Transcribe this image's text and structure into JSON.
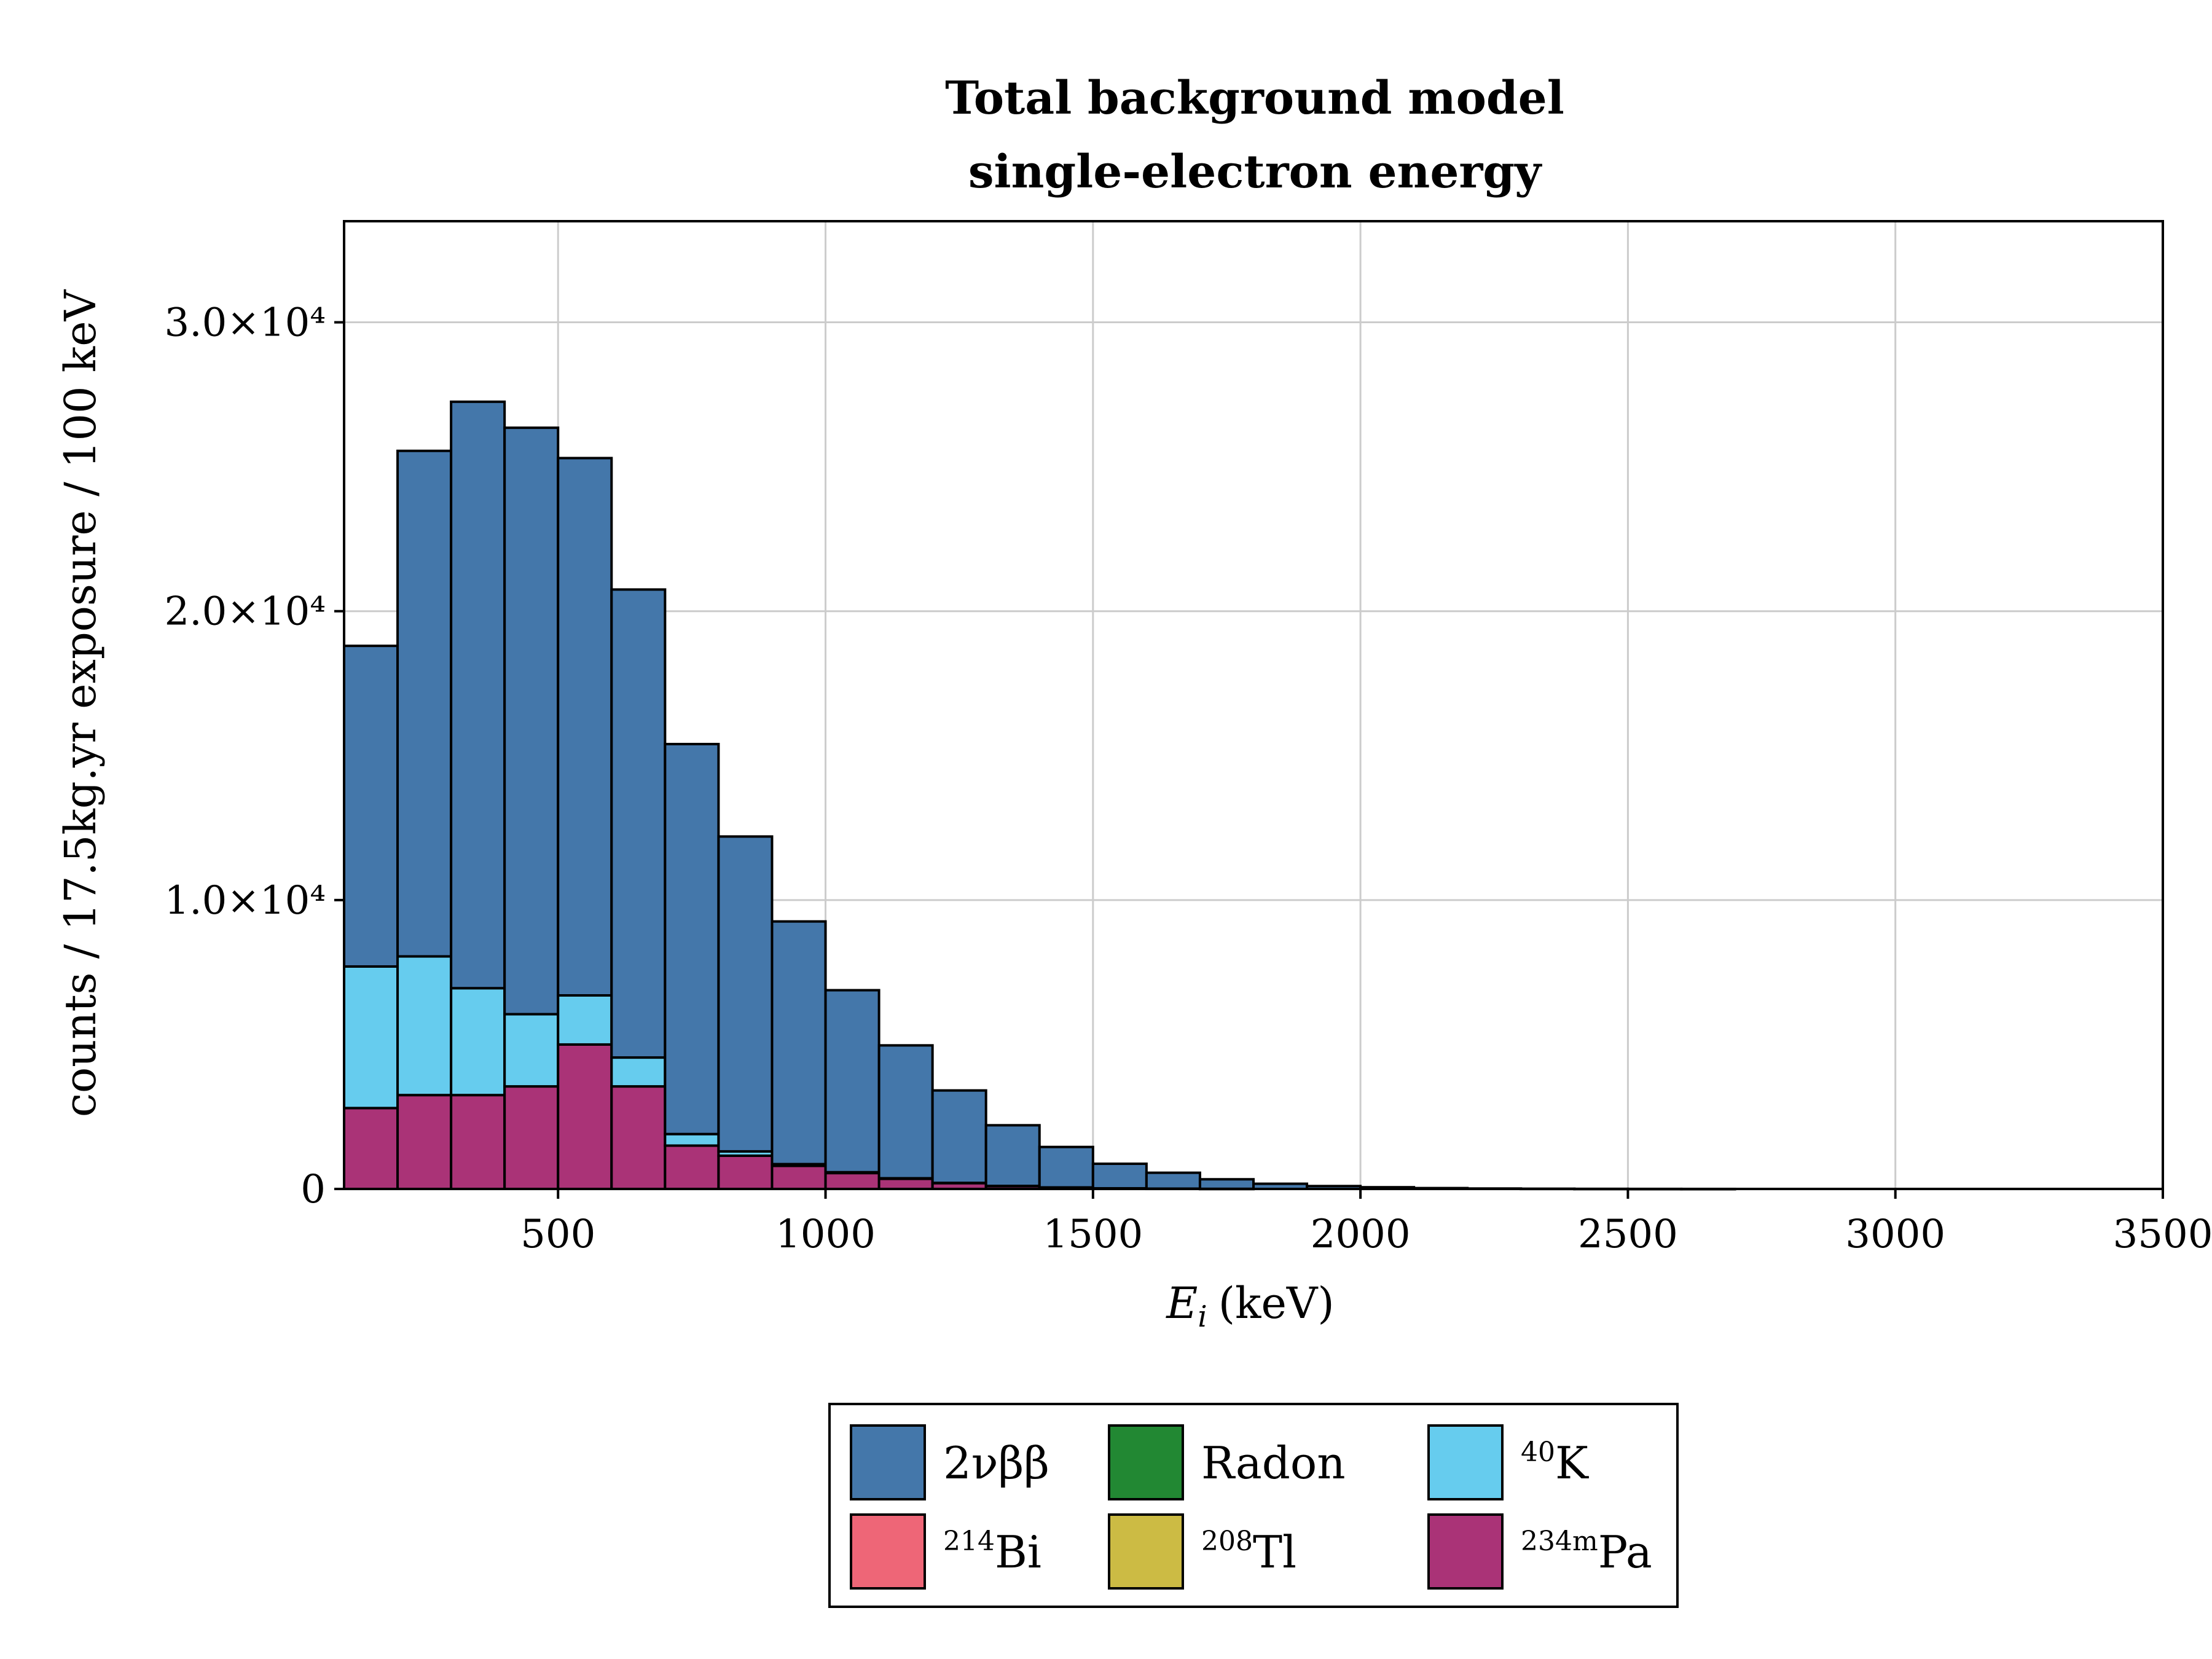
{
  "chart_data": {
    "type": "bar",
    "stacked": true,
    "title": "Total background model",
    "subtitle": "single-electron energy",
    "xlabel": "(keV)",
    "xlabel_symbol": "E",
    "xlabel_subscript": "i",
    "ylabel": "counts / 17.5kg.yr exposure / 100 keV",
    "xlim": [
      100,
      3500
    ],
    "ylim": [
      0,
      33500
    ],
    "xticks": [
      500,
      1000,
      1500,
      2000,
      2500,
      3000,
      3500
    ],
    "xtick_labels": [
      "500",
      "1000",
      "1500",
      "2000",
      "2500",
      "3000",
      "3500"
    ],
    "yticks": [
      0,
      10000,
      20000,
      30000
    ],
    "ytick_labels": [
      "0",
      "1.0×10⁴",
      "2.0×10⁴",
      "3.0×10⁴"
    ],
    "grid": true,
    "legend_position": "bottom-center",
    "bin_edges": [
      100,
      200,
      300,
      400,
      500,
      600,
      700,
      800,
      900,
      1000,
      1100,
      1200,
      1300,
      1400,
      1500,
      1600,
      1700,
      1800,
      1900,
      2000,
      2100,
      2200,
      2300,
      2400,
      2500,
      2600,
      2700,
      2800,
      2900,
      3000,
      3100,
      3200,
      3300,
      3400,
      3500
    ],
    "series": [
      {
        "name": "2νββ",
        "color": "#4477aa",
        "values": [
          11100,
          17500,
          20300,
          20300,
          18600,
          16200,
          13500,
          10900,
          8400,
          6300,
          4600,
          3200,
          2100,
          1400,
          850,
          550,
          330,
          180,
          100,
          60,
          30,
          15,
          8,
          4,
          2,
          1,
          0,
          0,
          0,
          0,
          0,
          0,
          0,
          0
        ]
      },
      {
        "name": "Radon",
        "color": "#228833",
        "values": [
          0,
          0,
          0,
          0,
          0,
          0,
          0,
          0,
          0,
          0,
          0,
          0,
          0,
          0,
          0,
          0,
          0,
          0,
          0,
          0,
          0,
          0,
          0,
          0,
          0,
          0,
          0,
          0,
          0,
          0,
          0,
          0,
          0,
          0
        ]
      },
      {
        "name": "40K",
        "color": "#66ccee",
        "values": [
          4900,
          4800,
          3700,
          2500,
          1700,
          1000,
          400,
          150,
          60,
          30,
          20,
          10,
          5,
          3,
          2,
          1,
          0,
          0,
          0,
          0,
          0,
          0,
          0,
          0,
          0,
          0,
          0,
          0,
          0,
          0,
          0,
          0,
          0,
          0
        ]
      },
      {
        "name": "214Bi",
        "color": "#ee6677",
        "values": [
          0,
          0,
          0,
          0,
          0,
          0,
          0,
          0,
          0,
          0,
          0,
          0,
          0,
          0,
          0,
          0,
          0,
          0,
          0,
          0,
          0,
          0,
          0,
          0,
          0,
          0,
          0,
          0,
          0,
          0,
          0,
          0,
          0,
          0
        ]
      },
      {
        "name": "208Tl",
        "color": "#ccbb44",
        "values": [
          0,
          0,
          0,
          0,
          0,
          0,
          0,
          0,
          0,
          0,
          0,
          0,
          0,
          0,
          0,
          0,
          0,
          0,
          0,
          0,
          0,
          0,
          0,
          0,
          0,
          0,
          0,
          0,
          0,
          0,
          0,
          0,
          0,
          0
        ]
      },
      {
        "name": "234mPa",
        "color": "#aa3377",
        "values": [
          2800,
          3250,
          3250,
          3550,
          5000,
          3550,
          1500,
          1150,
          800,
          550,
          350,
          200,
          100,
          50,
          20,
          10,
          5,
          0,
          0,
          0,
          0,
          0,
          0,
          0,
          0,
          0,
          0,
          0,
          0,
          0,
          0,
          0,
          0,
          0
        ]
      }
    ],
    "stack_order": [
      "234mPa",
      "40K",
      "2νββ"
    ],
    "legend": [
      {
        "label": "2νββ",
        "color": "#4477aa"
      },
      {
        "label": "Radon",
        "color": "#228833"
      },
      {
        "label": "K",
        "sup": "40",
        "color": "#66ccee"
      },
      {
        "label": "Bi",
        "sup": "214",
        "color": "#ee6677"
      },
      {
        "label": "Tl",
        "sup": "208",
        "color": "#ccbb44"
      },
      {
        "label": "Pa",
        "sup": "234m",
        "color": "#aa3377"
      }
    ]
  }
}
